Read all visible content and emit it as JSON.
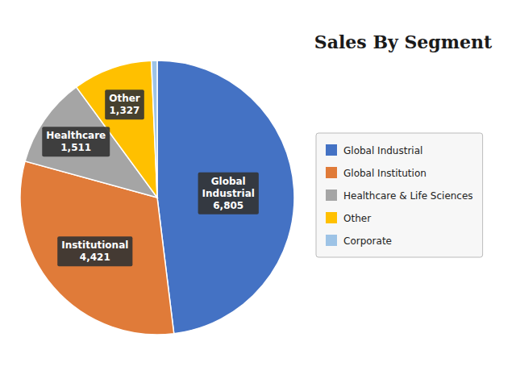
{
  "chart_data": {
    "type": "pie",
    "title": "Sales By Segment",
    "categories": [
      "Global Industrial",
      "Global Institution",
      "Healthcare & Life Sciences",
      "Other",
      "Corporate"
    ],
    "values": [
      6805,
      4421,
      1511,
      1327,
      97
    ],
    "colors": [
      "#4472C4",
      "#E07B39",
      "#A5A5A5",
      "#FFC000",
      "#9DC3E6"
    ],
    "data_labels": true,
    "value_labels": [
      "Global\nIndustrial\n6,805",
      "Institutional\n4,421",
      "Healthcare\n1,511",
      "Other\n1,327",
      null
    ],
    "legend": "right"
  }
}
